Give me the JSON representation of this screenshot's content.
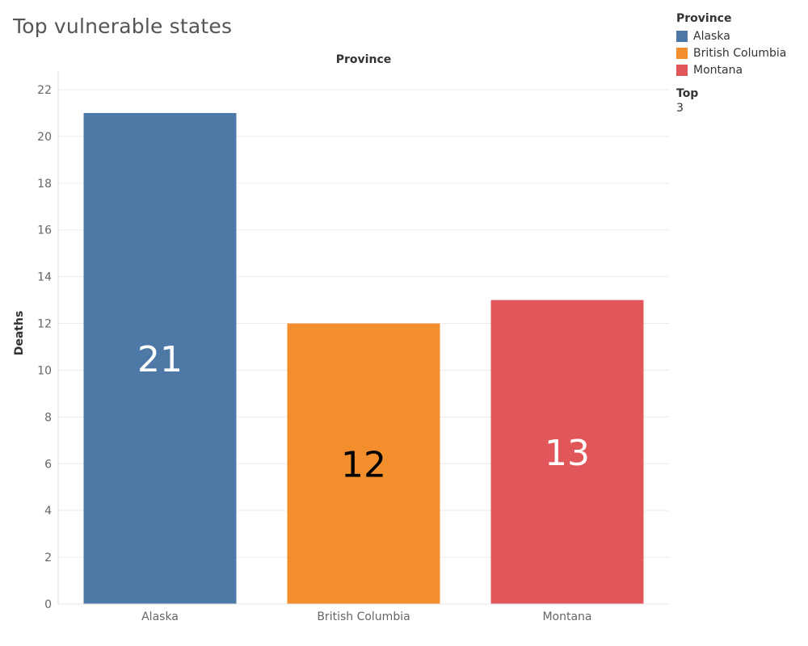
{
  "page": {
    "title": "Top vulnerable states"
  },
  "legend": {
    "title": "Province",
    "items": [
      {
        "label": "Alaska",
        "color": "#4e79a7"
      },
      {
        "label": "British Columbia",
        "color": "#f28e2b"
      },
      {
        "label": "Montana",
        "color": "#e15759"
      }
    ]
  },
  "filter": {
    "label": "Top",
    "value": "3"
  },
  "chart_data": {
    "type": "bar",
    "title": "",
    "xlabel": "Province",
    "ylabel": "Deaths",
    "categories": [
      "Alaska",
      "British Columbia",
      "Montana"
    ],
    "values": [
      21,
      12,
      13
    ],
    "data_labels": [
      "21",
      "12",
      "13"
    ],
    "colors": [
      "#4e79a7",
      "#f28e2b",
      "#e15759"
    ],
    "label_colors": [
      "#ffffff",
      "#000000",
      "#ffffff"
    ],
    "ylim": [
      0,
      22
    ],
    "yticks": [
      0,
      2,
      4,
      6,
      8,
      10,
      12,
      14,
      16,
      18,
      20,
      22
    ],
    "grid": true
  }
}
